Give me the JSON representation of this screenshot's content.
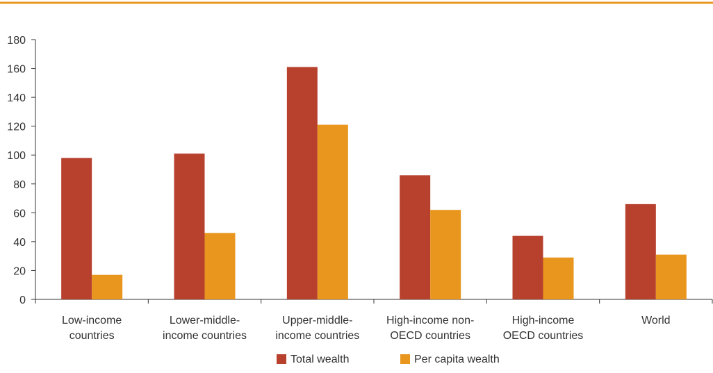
{
  "chart_data": {
    "type": "bar",
    "title": "",
    "xlabel": "",
    "ylabel": "",
    "ylim": [
      0,
      180
    ],
    "yticks": [
      0,
      20,
      40,
      60,
      80,
      100,
      120,
      140,
      160,
      180
    ],
    "grid": false,
    "legend_position": "bottom-center",
    "categories": [
      [
        "Low-income",
        "countries"
      ],
      [
        "Lower-middle-",
        "income countries"
      ],
      [
        "Upper-middle-",
        "income countries"
      ],
      [
        "High-income non-",
        "OECD countries"
      ],
      [
        "High-income",
        "OECD countries"
      ],
      [
        "World"
      ]
    ],
    "series": [
      {
        "name": "Total wealth",
        "color": "#b8412e",
        "values": [
          98,
          101,
          161,
          86,
          44,
          66
        ]
      },
      {
        "name": "Per capita wealth",
        "color": "#e8961d",
        "values": [
          17,
          46,
          121,
          62,
          29,
          31
        ]
      }
    ],
    "header_rule_color": "#e8961d"
  }
}
